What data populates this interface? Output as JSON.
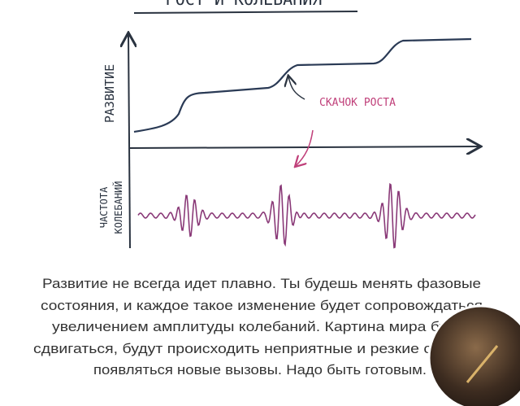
{
  "illustration": {
    "title": "РОСТ И КОЛЕБАНИЯ",
    "y_label": "РАЗВИТИЕ",
    "annotation": "СКАЧОК РОСТА",
    "lower_label": [
      "ЧАСТОТА",
      "КОЛЕБАНИЙ"
    ]
  },
  "caption": {
    "lines": [
      "Развитие не всегда идет плавно. Ты будешь менять фазовые",
      "состояния, и каждое такое изменение будет сопровождаться",
      "увеличением амплитуды колебаний. Картина мира будет",
      "сдвигаться, будут происходить неприятные и резкие события,",
      "появляться новые вызовы. Надо быть готовым."
    ]
  }
}
